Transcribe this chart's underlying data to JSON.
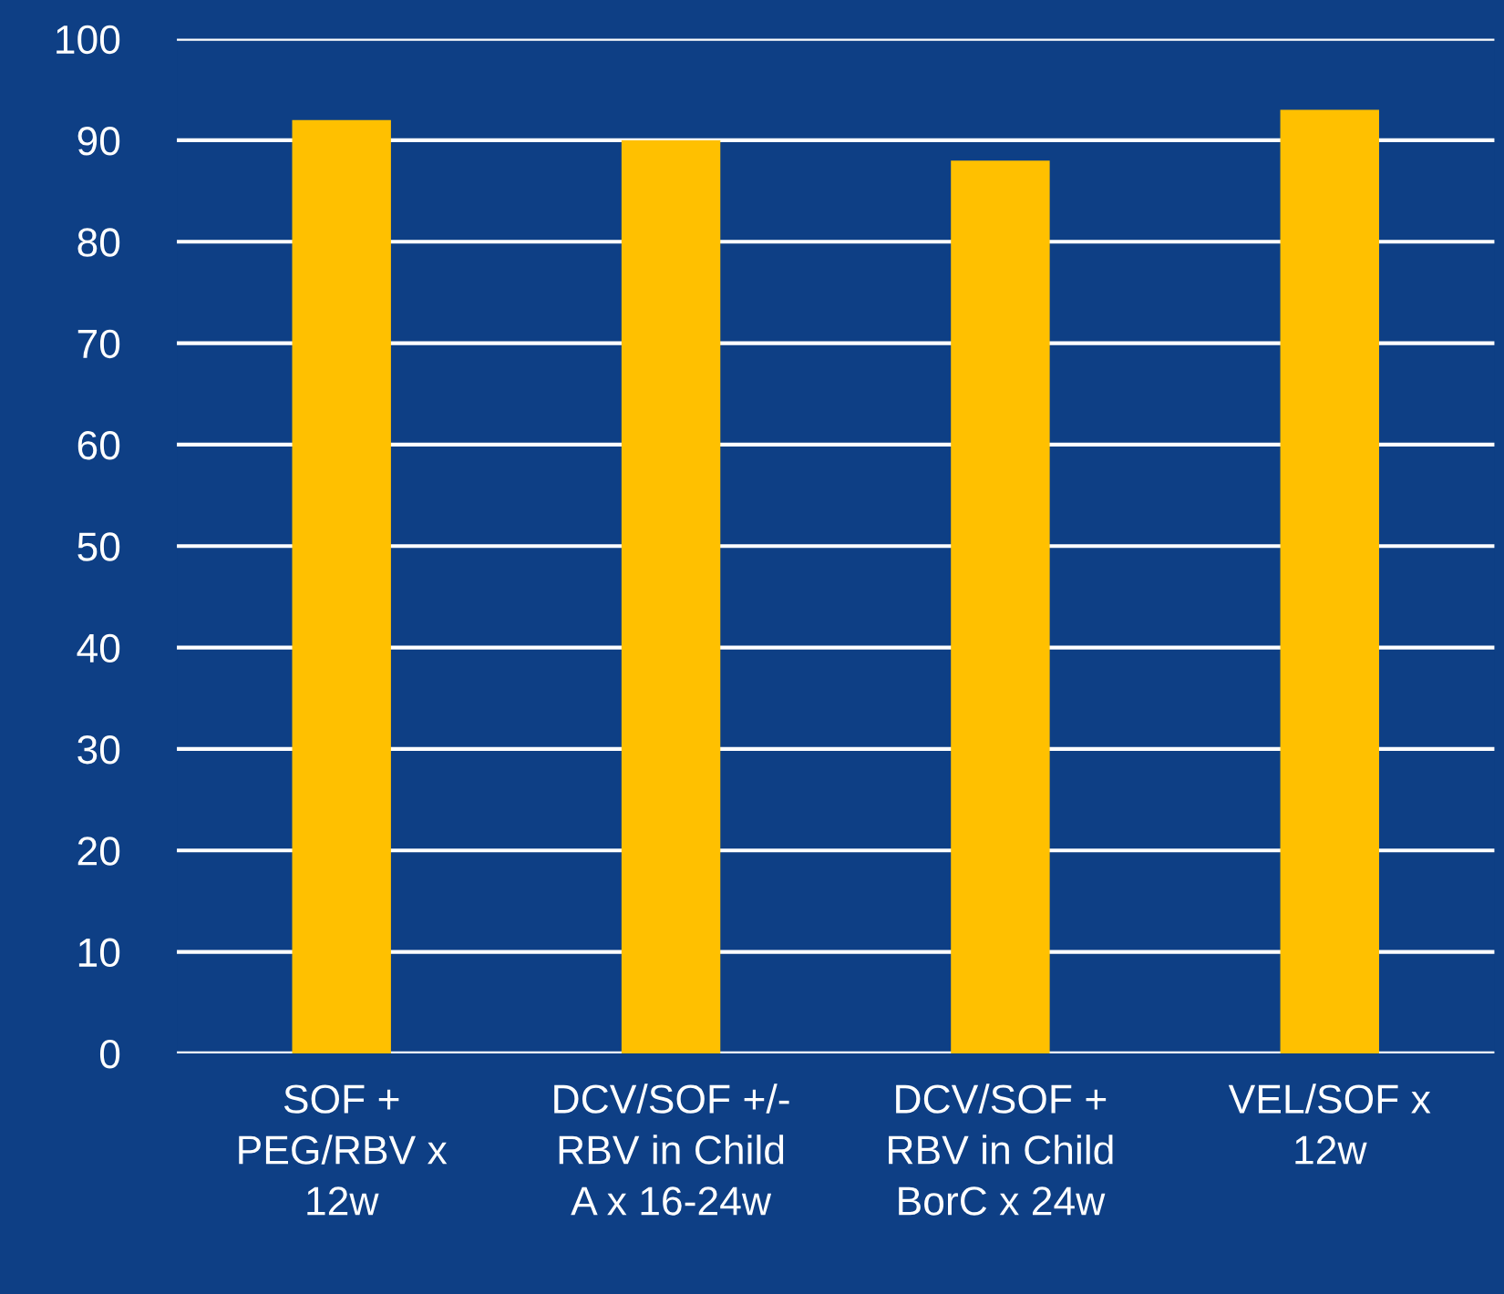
{
  "chart_data": {
    "type": "bar",
    "categories": [
      "SOF +\nPEG/RBV x\n12w",
      "DCV/SOF +/-\nRBV in Child\nA x 16-24w",
      "DCV/SOF +\nRBV in Child\nBorC x 24w",
      "VEL/SOF x\n12w"
    ],
    "values": [
      92,
      90,
      88,
      93
    ],
    "color": "#ffc000",
    "ylim": [
      0,
      100
    ],
    "yticks": [
      0,
      10,
      20,
      30,
      40,
      50,
      60,
      70,
      80,
      90,
      100
    ],
    "grid": "y"
  }
}
